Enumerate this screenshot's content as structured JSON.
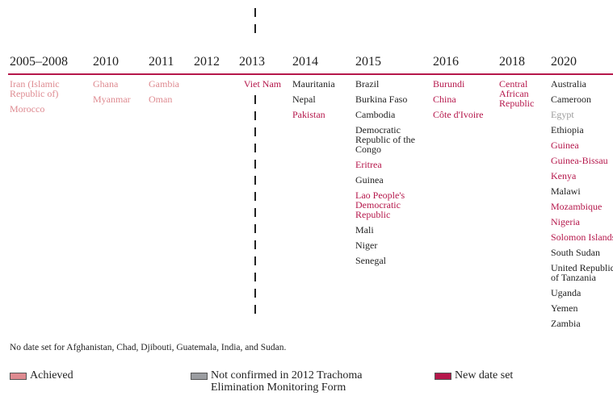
{
  "columns": [
    {
      "year": "2005–2008",
      "items": [
        {
          "text": "Iran (Islamic Republic of)",
          "color": "#de8a90"
        },
        {
          "text": "Morocco",
          "color": "#de8a90"
        }
      ]
    },
    {
      "year": "2010",
      "items": [
        {
          "text": "Ghana",
          "color": "#de8a90"
        },
        {
          "text": "Myanmar",
          "color": "#de8a90"
        }
      ]
    },
    {
      "year": "2011",
      "items": [
        {
          "text": "Gambia",
          "color": "#de8a90"
        },
        {
          "text": "Oman",
          "color": "#de8a90"
        }
      ]
    },
    {
      "year": "2012",
      "items": []
    },
    {
      "year": "2013",
      "items": [
        {
          "text": "Viet Nam",
          "color": "#b5174b"
        }
      ]
    },
    {
      "year": "2014",
      "items": [
        {
          "text": "Mauritania",
          "color": "#222222"
        },
        {
          "text": "Nepal",
          "color": "#222222"
        },
        {
          "text": "Pakistan",
          "color": "#b5174b"
        }
      ]
    },
    {
      "year": "2015",
      "items": [
        {
          "text": "Brazil",
          "color": "#222222"
        },
        {
          "text": "Burkina Faso",
          "color": "#222222"
        },
        {
          "text": "Cambodia",
          "color": "#222222"
        },
        {
          "text": "Democratic Republic of the Congo",
          "color": "#222222"
        },
        {
          "text": "Eritrea",
          "color": "#b5174b"
        },
        {
          "text": "Guinea",
          "color": "#222222"
        },
        {
          "text": "Lao People's Democratic Republic",
          "color": "#b5174b"
        },
        {
          "text": "Mali",
          "color": "#222222"
        },
        {
          "text": "Niger",
          "color": "#222222"
        },
        {
          "text": "Senegal",
          "color": "#222222"
        }
      ]
    },
    {
      "year": "2016",
      "items": [
        {
          "text": "Burundi",
          "color": "#b5174b"
        },
        {
          "text": "China",
          "color": "#b5174b"
        },
        {
          "text": "Côte d'Ivoire",
          "color": "#b5174b"
        }
      ]
    },
    {
      "year": "2018",
      "items": [
        {
          "text": "Central African Republic",
          "color": "#b5174b"
        }
      ]
    },
    {
      "year": "2020",
      "items": [
        {
          "text": "Australia",
          "color": "#222222"
        },
        {
          "text": "Cameroon",
          "color": "#222222"
        },
        {
          "text": "Egypt",
          "color": "#9a9a9a"
        },
        {
          "text": "Ethiopia",
          "color": "#222222"
        },
        {
          "text": "Guinea",
          "color": "#b5174b"
        },
        {
          "text": "Guinea-Bissau",
          "color": "#b5174b"
        },
        {
          "text": "Kenya",
          "color": "#b5174b"
        },
        {
          "text": "Malawi",
          "color": "#222222"
        },
        {
          "text": "Mozambique",
          "color": "#b5174b"
        },
        {
          "text": "Nigeria",
          "color": "#b5174b"
        },
        {
          "text": "Solomon Islands",
          "color": "#b5174b"
        },
        {
          "text": "South Sudan",
          "color": "#222222"
        },
        {
          "text": "United Republic of Tanzania",
          "color": "#222222"
        },
        {
          "text": "Uganda",
          "color": "#222222"
        },
        {
          "text": "Yemen",
          "color": "#222222"
        },
        {
          "text": "Zambia",
          "color": "#222222"
        }
      ]
    }
  ],
  "note": "No date set for Afghanistan, Chad, Djibouti, Guatemala, India, and Sudan.",
  "legend": [
    {
      "label": "Achieved",
      "color": "#de8a90"
    },
    {
      "label": "Not confirmed in 2012 Trachoma Elimination Monitoring Form",
      "color": "#9a9ca0"
    },
    {
      "label": "New date set",
      "color": "#b5174b"
    }
  ]
}
